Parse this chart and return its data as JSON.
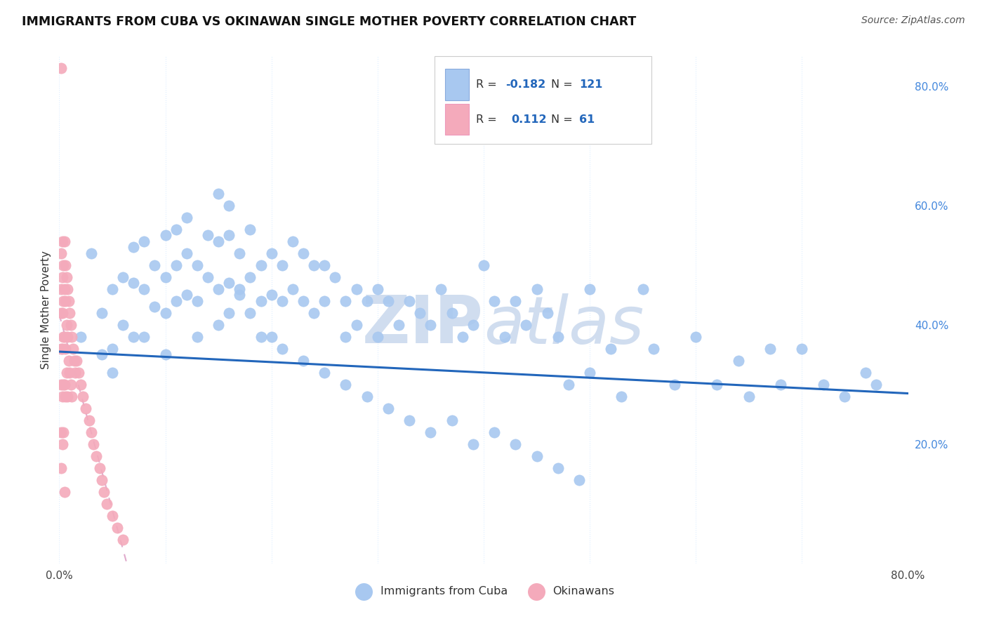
{
  "title": "IMMIGRANTS FROM CUBA VS OKINAWAN SINGLE MOTHER POVERTY CORRELATION CHART",
  "source": "Source: ZipAtlas.com",
  "ylabel": "Single Mother Poverty",
  "xlim": [
    0.0,
    0.8
  ],
  "ylim": [
    0.0,
    0.85
  ],
  "x_ticks": [
    0.0,
    0.1,
    0.2,
    0.3,
    0.4,
    0.5,
    0.6,
    0.7,
    0.8
  ],
  "x_tick_labels": [
    "0.0%",
    "",
    "",
    "",
    "",
    "",
    "",
    "",
    "80.0%"
  ],
  "y_ticks_right": [
    0.2,
    0.4,
    0.6,
    0.8
  ],
  "y_tick_labels_right": [
    "20.0%",
    "40.0%",
    "60.0%",
    "80.0%"
  ],
  "cuba_color": "#A8C8F0",
  "okinawa_color": "#F4AABB",
  "trendline_cuba_color": "#2266BB",
  "trendline_okinawa_color": "#E0AACC",
  "watermark_color": "#D0DDEF",
  "R_cuba": -0.182,
  "N_cuba": 121,
  "R_okinawa": 0.112,
  "N_okinawa": 61,
  "cuba_x": [
    0.02,
    0.03,
    0.04,
    0.04,
    0.05,
    0.05,
    0.05,
    0.06,
    0.06,
    0.07,
    0.07,
    0.07,
    0.08,
    0.08,
    0.08,
    0.09,
    0.09,
    0.1,
    0.1,
    0.1,
    0.1,
    0.11,
    0.11,
    0.11,
    0.12,
    0.12,
    0.12,
    0.13,
    0.13,
    0.13,
    0.14,
    0.14,
    0.15,
    0.15,
    0.15,
    0.16,
    0.16,
    0.16,
    0.17,
    0.17,
    0.18,
    0.18,
    0.18,
    0.19,
    0.19,
    0.2,
    0.2,
    0.2,
    0.21,
    0.21,
    0.22,
    0.22,
    0.23,
    0.23,
    0.24,
    0.24,
    0.25,
    0.25,
    0.26,
    0.27,
    0.27,
    0.28,
    0.28,
    0.29,
    0.3,
    0.3,
    0.31,
    0.32,
    0.33,
    0.34,
    0.35,
    0.36,
    0.37,
    0.38,
    0.39,
    0.4,
    0.41,
    0.42,
    0.43,
    0.44,
    0.45,
    0.46,
    0.47,
    0.48,
    0.5,
    0.5,
    0.52,
    0.53,
    0.55,
    0.56,
    0.58,
    0.6,
    0.62,
    0.64,
    0.65,
    0.67,
    0.68,
    0.7,
    0.72,
    0.74,
    0.76,
    0.77,
    0.15,
    0.16,
    0.17,
    0.19,
    0.21,
    0.23,
    0.25,
    0.27,
    0.29,
    0.31,
    0.33,
    0.35,
    0.37,
    0.39,
    0.41,
    0.43,
    0.45,
    0.47,
    0.49
  ],
  "cuba_y": [
    0.38,
    0.52,
    0.42,
    0.35,
    0.46,
    0.36,
    0.32,
    0.48,
    0.4,
    0.53,
    0.47,
    0.38,
    0.54,
    0.46,
    0.38,
    0.5,
    0.43,
    0.55,
    0.48,
    0.42,
    0.35,
    0.56,
    0.5,
    0.44,
    0.58,
    0.52,
    0.45,
    0.5,
    0.44,
    0.38,
    0.55,
    0.48,
    0.54,
    0.46,
    0.4,
    0.55,
    0.47,
    0.42,
    0.52,
    0.45,
    0.56,
    0.48,
    0.42,
    0.5,
    0.44,
    0.52,
    0.45,
    0.38,
    0.5,
    0.44,
    0.54,
    0.46,
    0.52,
    0.44,
    0.5,
    0.42,
    0.5,
    0.44,
    0.48,
    0.44,
    0.38,
    0.46,
    0.4,
    0.44,
    0.46,
    0.38,
    0.44,
    0.4,
    0.44,
    0.42,
    0.4,
    0.46,
    0.42,
    0.38,
    0.4,
    0.5,
    0.44,
    0.38,
    0.44,
    0.4,
    0.46,
    0.42,
    0.38,
    0.3,
    0.46,
    0.32,
    0.36,
    0.28,
    0.46,
    0.36,
    0.3,
    0.38,
    0.3,
    0.34,
    0.28,
    0.36,
    0.3,
    0.36,
    0.3,
    0.28,
    0.32,
    0.3,
    0.62,
    0.6,
    0.46,
    0.38,
    0.36,
    0.34,
    0.32,
    0.3,
    0.28,
    0.26,
    0.24,
    0.22,
    0.24,
    0.2,
    0.22,
    0.2,
    0.18,
    0.16,
    0.14
  ],
  "okinawa_x": [
    0.002,
    0.002,
    0.002,
    0.002,
    0.002,
    0.002,
    0.002,
    0.002,
    0.003,
    0.003,
    0.003,
    0.003,
    0.003,
    0.003,
    0.004,
    0.004,
    0.004,
    0.004,
    0.004,
    0.005,
    0.005,
    0.005,
    0.005,
    0.005,
    0.006,
    0.006,
    0.006,
    0.006,
    0.007,
    0.007,
    0.007,
    0.008,
    0.008,
    0.008,
    0.009,
    0.009,
    0.01,
    0.01,
    0.011,
    0.011,
    0.012,
    0.012,
    0.013,
    0.014,
    0.015,
    0.016,
    0.018,
    0.02,
    0.022,
    0.025,
    0.028,
    0.03,
    0.032,
    0.035,
    0.038,
    0.04,
    0.042,
    0.045,
    0.05,
    0.055,
    0.06
  ],
  "okinawa_y": [
    0.83,
    0.52,
    0.46,
    0.42,
    0.36,
    0.3,
    0.22,
    0.16,
    0.54,
    0.48,
    0.42,
    0.36,
    0.28,
    0.2,
    0.5,
    0.44,
    0.38,
    0.3,
    0.22,
    0.54,
    0.46,
    0.38,
    0.3,
    0.12,
    0.5,
    0.44,
    0.36,
    0.28,
    0.48,
    0.4,
    0.32,
    0.46,
    0.38,
    0.28,
    0.44,
    0.34,
    0.42,
    0.32,
    0.4,
    0.3,
    0.38,
    0.28,
    0.36,
    0.34,
    0.32,
    0.34,
    0.32,
    0.3,
    0.28,
    0.26,
    0.24,
    0.22,
    0.2,
    0.18,
    0.16,
    0.14,
    0.12,
    0.1,
    0.08,
    0.06,
    0.04
  ],
  "background_color": "#FFFFFF",
  "grid_color": "#DDEEFF"
}
